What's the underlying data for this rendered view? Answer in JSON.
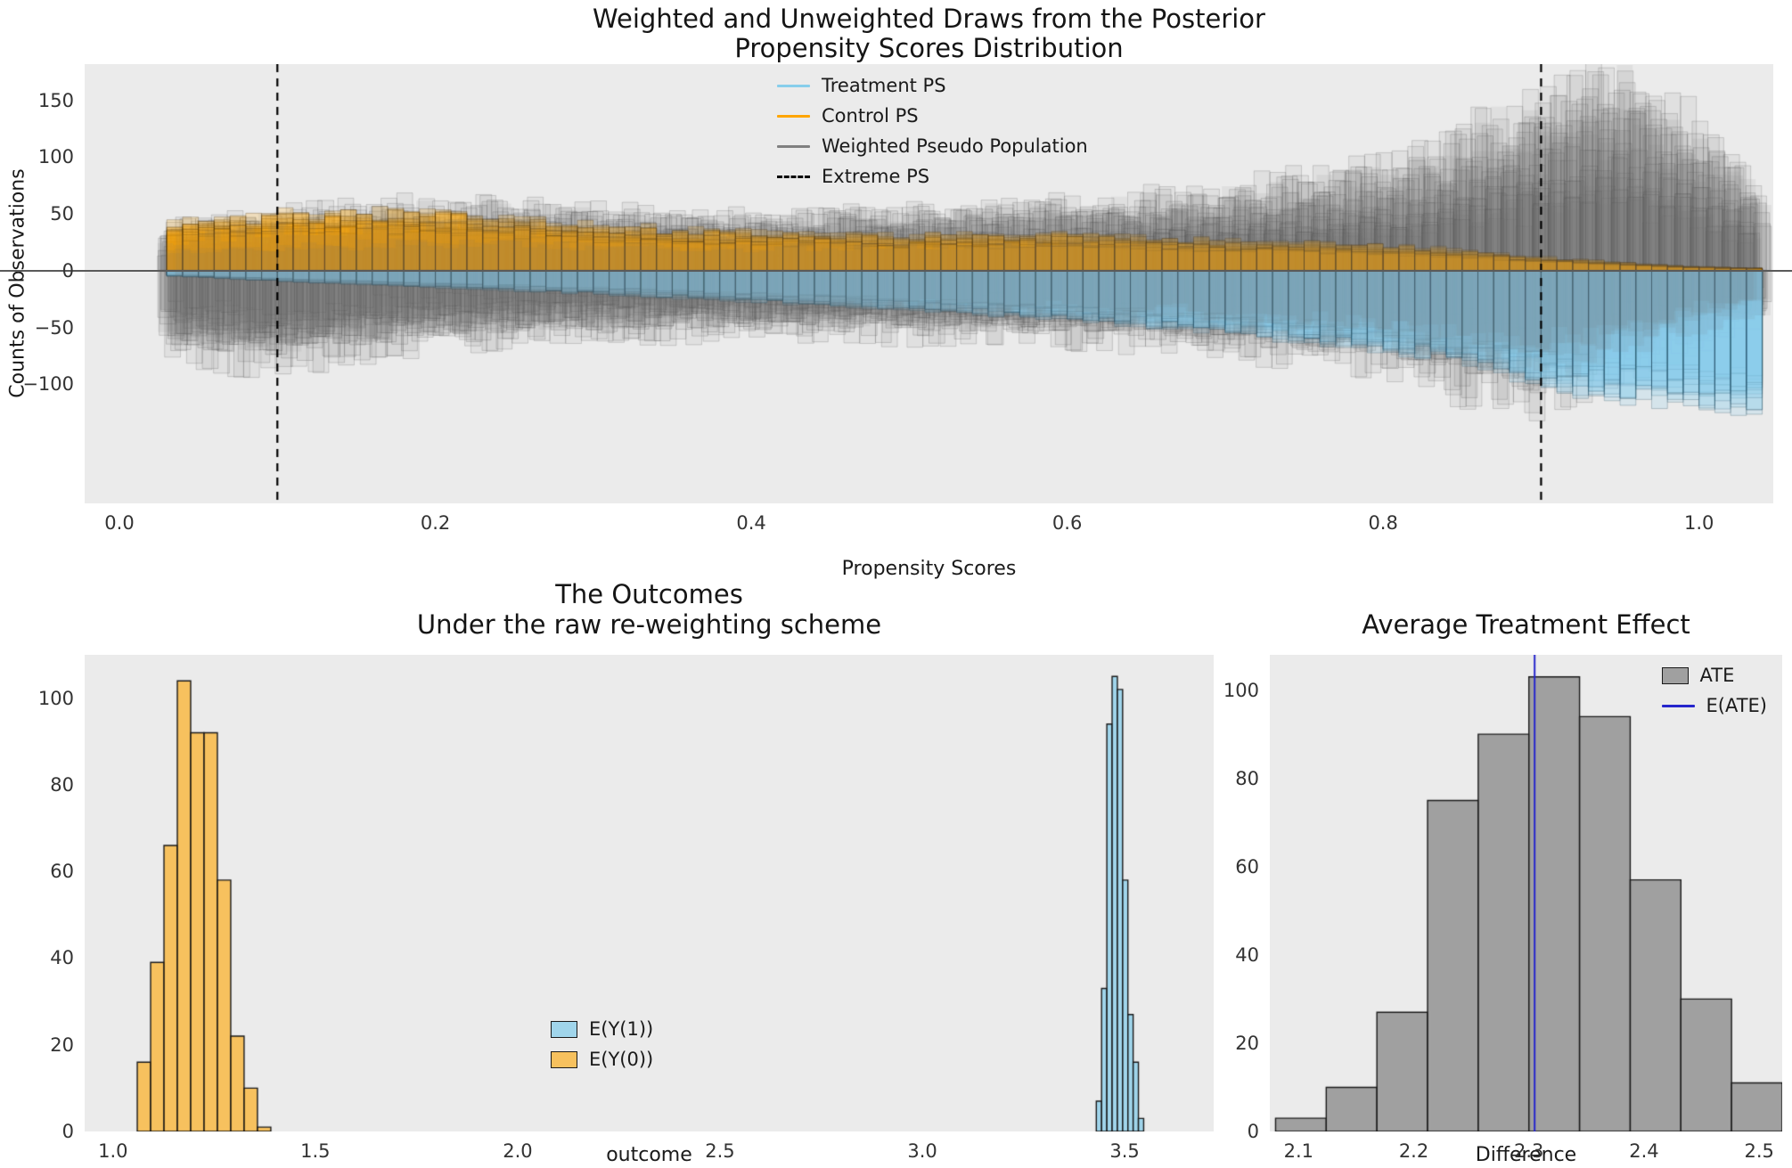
{
  "figure": {
    "bg": "#ffffff",
    "plot_bg": "#ebebeb",
    "text_color": "#1a1a1a"
  },
  "colors": {
    "treatment": "#87ceeb",
    "control": "#ffa500",
    "weighted": "#808080",
    "extreme": "#000000",
    "ate_line": "#2525cc",
    "bar_edge": "#1a1a1a"
  },
  "chart_data": [
    {
      "id": "posterior-propensity-distribution",
      "type": "area",
      "title1": "Weighted and Unweighted Draws from the Posterior",
      "title2": "Propensity Scores Distribution",
      "xlabel": "Propensity Scores",
      "ylabel": "Counts of Observations",
      "xlim": [
        -0.022,
        1.047
      ],
      "ylim": [
        -205,
        182
      ],
      "xticks": {
        "values": [
          0.0,
          0.2,
          0.4,
          0.6,
          0.8,
          1.0
        ],
        "labels": [
          "0.0",
          "0.2",
          "0.4",
          "0.6",
          "0.8",
          "1.0"
        ]
      },
      "yticks": {
        "values": [
          150,
          100,
          50,
          0,
          -50,
          -100
        ],
        "labels": [
          "150",
          "100",
          "50",
          "0",
          "−50",
          "−100"
        ]
      },
      "extreme_ps": [
        0.1,
        0.9
      ],
      "n_posterior_draws": 16,
      "bin_width": 0.01,
      "bins_range": [
        0.03,
        1.035
      ],
      "ps_grid": [
        0.03,
        0.1,
        0.2,
        0.3,
        0.4,
        0.5,
        0.6,
        0.7,
        0.8,
        0.85,
        0.9,
        0.95,
        1.0,
        1.03
      ],
      "control_mean": [
        34,
        42,
        44,
        33,
        29,
        26,
        27,
        22,
        19,
        15,
        10,
        6,
        3,
        2
      ],
      "treatment_mean": [
        -4,
        -8,
        -13,
        -18,
        -24,
        -30,
        -38,
        -48,
        -62,
        -72,
        -88,
        -100,
        -105,
        -108
      ],
      "weighted_upper_mean": [
        26,
        33,
        40,
        35,
        33,
        35,
        40,
        46,
        60,
        80,
        100,
        118,
        85,
        55
      ],
      "weighted_lower_mean": [
        -48,
        -55,
        -42,
        -38,
        -36,
        -38,
        -40,
        -45,
        -55,
        -68,
        -75,
        -60,
        -42,
        -30
      ],
      "legend": [
        {
          "label": "Treatment PS",
          "swatch": "line",
          "color": "#87ceeb"
        },
        {
          "label": "Control PS",
          "swatch": "line",
          "color": "#ffa500"
        },
        {
          "label": "Weighted Pseudo Population",
          "swatch": "line",
          "color": "#808080"
        },
        {
          "label": "Extreme PS",
          "swatch": "dashed-line",
          "color": "#000000"
        }
      ]
    },
    {
      "id": "outcomes-distribution",
      "type": "bar",
      "title1": "The Outcomes",
      "title2": "Under the raw re-weighting scheme",
      "xlabel": "outcome",
      "xlim": [
        0.93,
        3.72
      ],
      "ylim": [
        0,
        110
      ],
      "xticks": {
        "values": [
          1.0,
          1.5,
          2.0,
          2.5,
          3.0,
          3.5
        ],
        "labels": [
          "1.0",
          "1.5",
          "2.0",
          "2.5",
          "3.0",
          "3.5"
        ]
      },
      "yticks": {
        "values": [
          0,
          20,
          40,
          60,
          80,
          100
        ],
        "labels": [
          "0",
          "20",
          "40",
          "60",
          "80",
          "100"
        ]
      },
      "series": [
        {
          "name": "E(Y(1))",
          "color": "#87ceeb",
          "alpha": 0.75,
          "bins_start": 3.43,
          "bin_width": 0.013,
          "counts": [
            7,
            33,
            94,
            105,
            102,
            58,
            27,
            16,
            3
          ]
        },
        {
          "name": "E(Y(0))",
          "color": "#ffa500",
          "alpha": 0.6,
          "bins_start": 1.06,
          "bin_width": 0.033,
          "counts": [
            16,
            39,
            66,
            104,
            92,
            92,
            58,
            22,
            10,
            1
          ]
        }
      ],
      "legend": [
        {
          "label": "E(Y(1))",
          "swatch": "patch",
          "color": "#87ceeb",
          "alpha": 0.75
        },
        {
          "label": "E(Y(0))",
          "swatch": "patch",
          "color": "#ffa500",
          "alpha": 0.6
        }
      ]
    },
    {
      "id": "average-treatment-effect",
      "type": "bar",
      "title1": "Average Treatment Effect",
      "xlabel": "Difference",
      "xlim": [
        2.075,
        2.52
      ],
      "ylim": [
        0,
        108
      ],
      "xticks": {
        "values": [
          2.1,
          2.2,
          2.3,
          2.4,
          2.5
        ],
        "labels": [
          "2.1",
          "2.2",
          "2.3",
          "2.4",
          "2.5"
        ]
      },
      "yticks": {
        "values": [
          0,
          20,
          40,
          60,
          80,
          100
        ],
        "labels": [
          "0",
          "20",
          "40",
          "60",
          "80",
          "100"
        ]
      },
      "bins_start": 2.08,
      "bin_width": 0.044,
      "counts": [
        3,
        10,
        27,
        75,
        90,
        103,
        94,
        57,
        30,
        11
      ],
      "bar_color": "#808080",
      "bar_alpha": 0.7,
      "e_ate": 2.305,
      "legend": [
        {
          "label": "ATE",
          "swatch": "patch",
          "color": "#808080",
          "alpha": 0.7
        },
        {
          "label": "E(ATE)",
          "swatch": "line",
          "color": "#2525cc"
        }
      ]
    }
  ]
}
